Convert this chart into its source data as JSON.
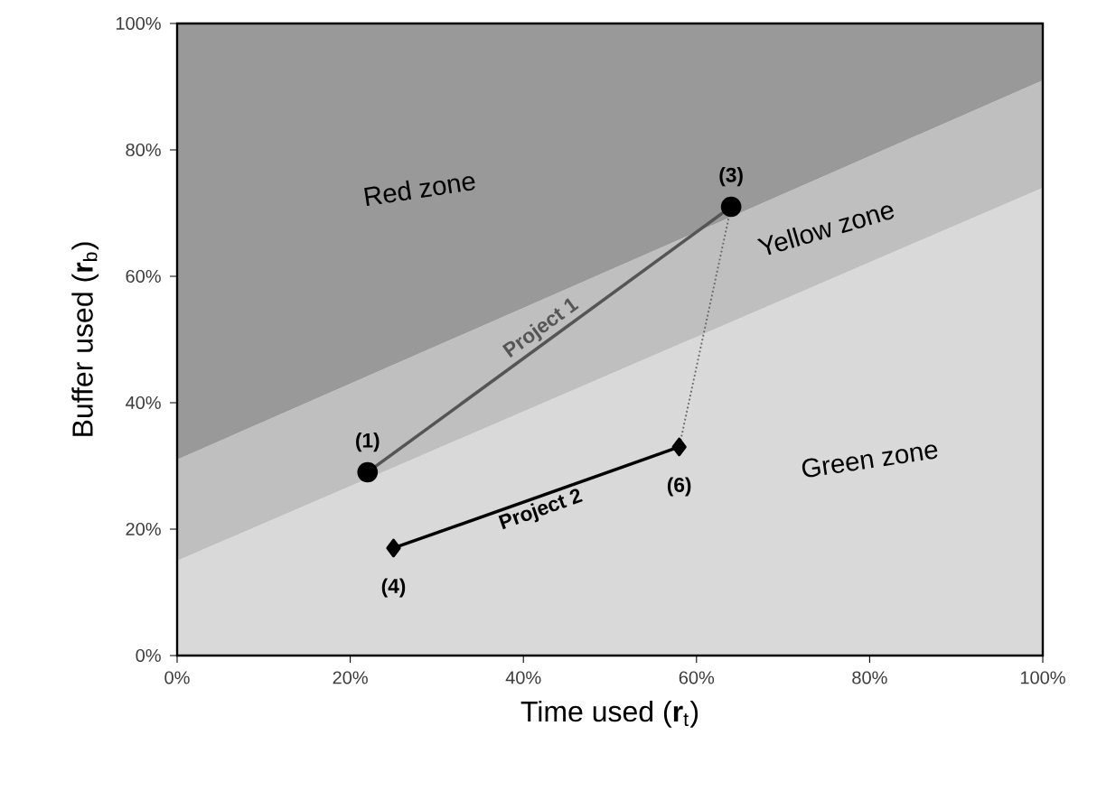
{
  "chart_data": {
    "type": "area",
    "stacked": true,
    "xlabel": "Time used (**r**$_{t}$)",
    "ylabel": "Buffer used (**r**$_{b}$)",
    "xlim": [
      0,
      100
    ],
    "ylim": [
      0,
      100
    ],
    "xticks": [
      {
        "value": 0,
        "label": "0%"
      },
      {
        "value": 20,
        "label": "20%"
      },
      {
        "value": 40,
        "label": "40%"
      },
      {
        "value": 60,
        "label": "60%"
      },
      {
        "value": 80,
        "label": "80%"
      },
      {
        "value": 100,
        "label": "100%"
      }
    ],
    "yticks": [
      {
        "value": 0,
        "label": "0%"
      },
      {
        "value": 20,
        "label": "20%"
      },
      {
        "value": 40,
        "label": "40%"
      },
      {
        "value": 60,
        "label": "60%"
      },
      {
        "value": 80,
        "label": "80%"
      },
      {
        "value": 100,
        "label": "100%"
      }
    ],
    "grid": false,
    "legend": false,
    "series": [
      {
        "name": "Green zone",
        "color": "#d9d9d9",
        "x": [
          0,
          100
        ],
        "values": [
          15,
          74
        ]
      },
      {
        "name": "Yellow zone",
        "color": "#bfbfbf",
        "x": [
          0,
          100
        ],
        "values": [
          16,
          17
        ]
      },
      {
        "name": "Red zone",
        "color": "#999999",
        "x": [
          0,
          100
        ],
        "values": [
          69,
          9
        ]
      },
      {
        "name": "Project 1",
        "type": "line",
        "color": "#555555",
        "marker": "circle",
        "line_style": "solid",
        "x": [
          22,
          64
        ],
        "values": [
          29,
          71
        ]
      },
      {
        "type": "line",
        "color": "#666666",
        "marker": "none",
        "line_style": "dotted",
        "x": [
          64,
          58
        ],
        "values": [
          71,
          33
        ]
      },
      {
        "name": "Project 2",
        "type": "line",
        "color": "#000000",
        "marker": "diamond",
        "line_style": "solid",
        "x": [
          25,
          58
        ],
        "values": [
          17,
          33
        ]
      }
    ],
    "annotations": [
      {
        "text": "(1)",
        "x": 22,
        "y": 29
      },
      {
        "text": "(3)",
        "x": 64,
        "y": 71
      },
      {
        "text": "(4)",
        "x": 25,
        "y": 17
      },
      {
        "text": "(6)",
        "x": 58,
        "y": 33
      }
    ]
  }
}
